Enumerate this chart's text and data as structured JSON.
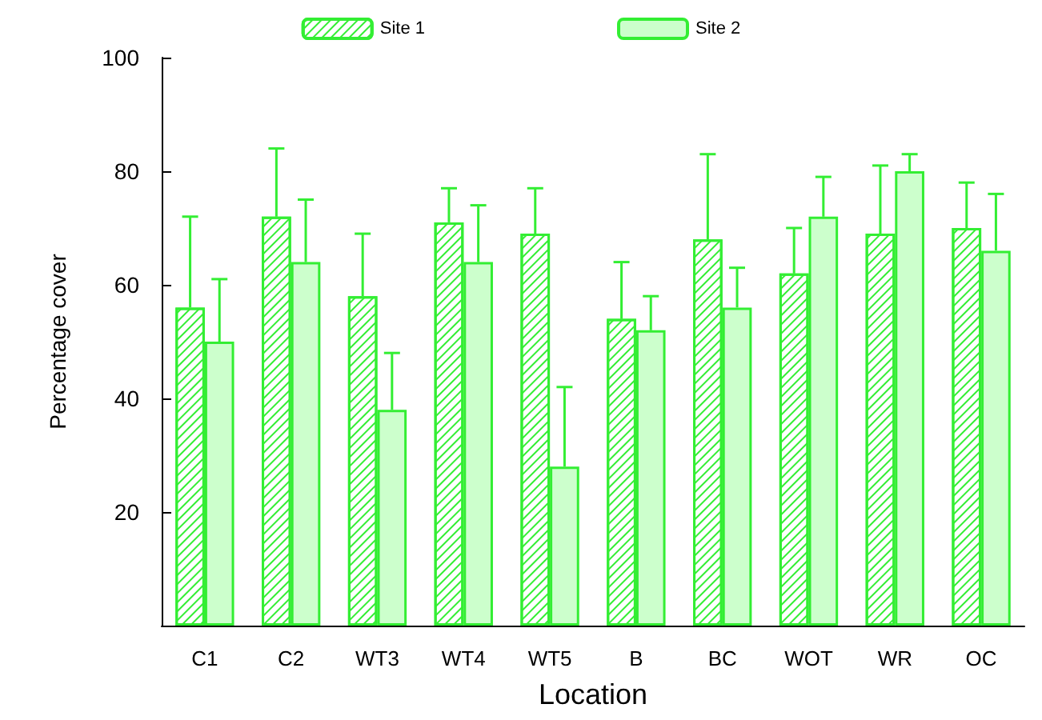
{
  "chart_data": {
    "type": "bar",
    "xlabel": "Location",
    "ylabel": "Percentage cover",
    "categories": [
      "C1",
      "C2",
      "WT3",
      "WT4",
      "WT5",
      "B",
      "BC",
      "WOT",
      "WR",
      "OC"
    ],
    "series": [
      {
        "name": "Site 1",
        "color": "#33ee33",
        "values": [
          56,
          72,
          58,
          71,
          69,
          54,
          68,
          62,
          69,
          70
        ],
        "errors": [
          [
            56,
            72
          ],
          [
            72,
            84
          ],
          [
            58,
            69
          ],
          [
            71,
            77
          ],
          [
            69,
            77
          ],
          [
            54,
            64
          ],
          [
            68,
            83
          ],
          [
            62,
            70
          ],
          [
            69,
            81
          ],
          [
            70,
            78
          ]
        ]
      },
      {
        "name": "Site 2",
        "color": "#ccffcc",
        "values": [
          50,
          64,
          38,
          64,
          28,
          52,
          56,
          72,
          80,
          66
        ],
        "errors": [
          [
            50,
            61
          ],
          [
            64,
            75
          ],
          [
            38,
            48
          ],
          [
            64,
            74
          ],
          [
            28,
            42
          ],
          [
            52,
            58
          ],
          [
            56,
            63
          ],
          [
            72,
            79
          ],
          [
            80,
            83
          ],
          [
            66,
            76
          ]
        ]
      }
    ],
    "ylim": [
      0,
      100
    ],
    "yticks": [
      20,
      40,
      60,
      80,
      100
    ],
    "grid": false,
    "legend": "top"
  }
}
